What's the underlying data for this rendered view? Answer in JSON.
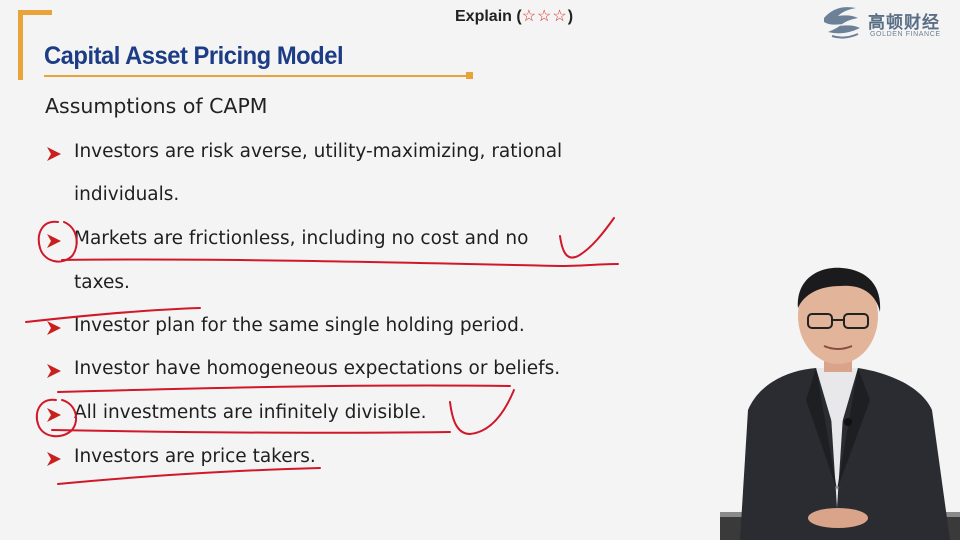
{
  "header": {
    "title": "Capital Asset Pricing Model",
    "rating_label": "Explain (",
    "rating_stars": "☆☆☆",
    "rating_close": ")"
  },
  "logo": {
    "chinese": "高顿财经",
    "english": "GOLDEN FINANCE"
  },
  "content": {
    "heading": "Assumptions of CAPM",
    "bullets": [
      {
        "lines": [
          "Investors are risk averse, utility-maximizing, rational",
          "individuals."
        ]
      },
      {
        "lines": [
          "Markets are frictionless, including no cost and no",
          "taxes."
        ]
      },
      {
        "lines": [
          "Investor plan for the same single holding period."
        ]
      },
      {
        "lines": [
          "Investor have homogeneous expectations or beliefs."
        ]
      },
      {
        "lines": [
          "All investments are infinitely divisible."
        ]
      },
      {
        "lines": [
          "Investors are price takers."
        ]
      }
    ]
  },
  "colors": {
    "title_blue": "#1c3c86",
    "accent_orange": "#e8a33a",
    "bullet_red": "#c8201f",
    "ink_red": "#d0182a"
  }
}
